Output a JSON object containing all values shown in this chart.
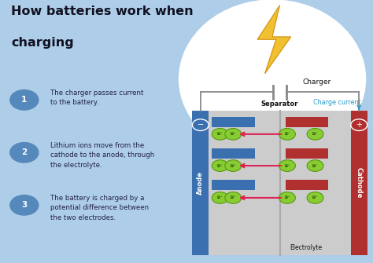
{
  "bg_color": "#aecde8",
  "title_line1": "How batteries work when",
  "title_line2": "charging",
  "title_color": "#111122",
  "title_fontsize": 11.5,
  "steps": [
    {
      "num": "1",
      "text": "The charger passes current\nto the battery."
    },
    {
      "num": "2",
      "text": "Lithium ions move from the\ncathode to the anode, through\nthe electrolyte."
    },
    {
      "num": "3",
      "text": "The battery is charged by a\npotential difference between\nthe two electrodes."
    }
  ],
  "step_circle_color": "#5588bb",
  "step_text_color": "#222244",
  "step_fontsize": 6.2,
  "anode_color": "#3a70b0",
  "cathode_color": "#b03030",
  "inner_bg": "#cccccc",
  "bar_anode": "#3a70b0",
  "bar_cathode": "#b03030",
  "li_fill": "#88cc33",
  "li_edge": "#559911",
  "arrow_color": "#dd2255",
  "line_color": "#888888",
  "cc_color": "#2299cc",
  "label_dark": "#111111",
  "white": "#ffffff",
  "bolt_fill": "#f0c030",
  "bolt_edge": "#d09010",
  "charger_label": "Charger",
  "cc_label": "Charge current",
  "sep_label": "Separator",
  "elec_label": "Electrolyte",
  "anode_label": "Anode",
  "cathode_label": "Cathode"
}
